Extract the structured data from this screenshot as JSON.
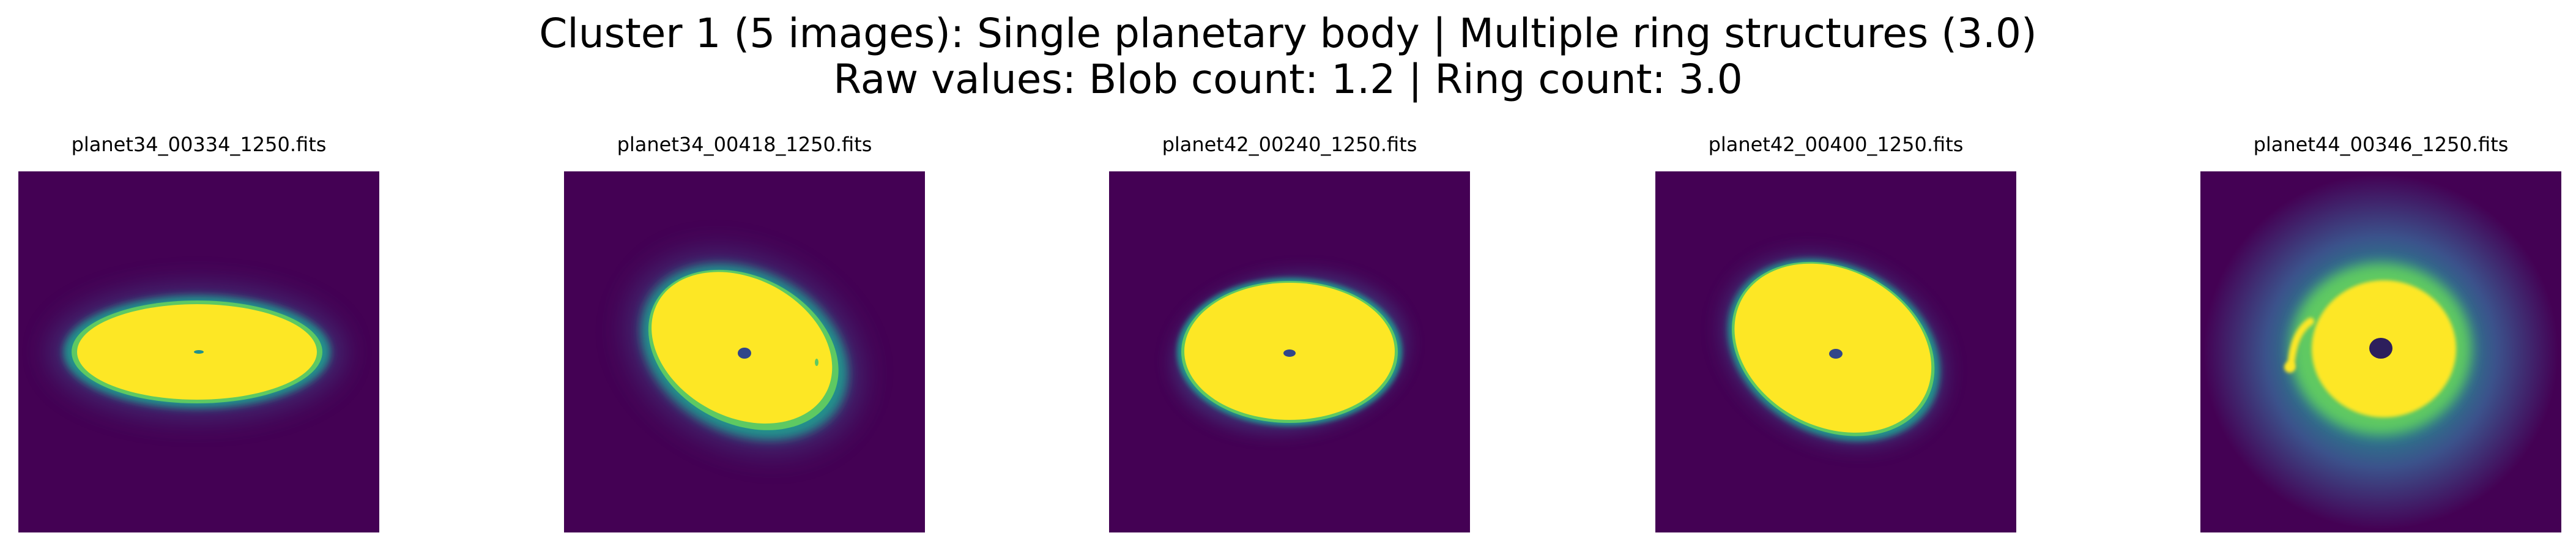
{
  "figure": {
    "title_line1": "Cluster 1 (5 images): Single planetary body | Multiple ring structures (3.0)",
    "title_line2": "Raw values: Blob count: 1.2 | Ring count: 3.0"
  },
  "colors": {
    "background": "#440154",
    "halo": "#21918c",
    "rim": "#5ec962",
    "disk": "#fde725",
    "hole": "#31468a"
  },
  "panels": [
    {
      "filename": "planet34_00334_1250.fits"
    },
    {
      "filename": "planet34_00418_1250.fits"
    },
    {
      "filename": "planet42_00240_1250.fits"
    },
    {
      "filename": "planet42_00400_1250.fits"
    },
    {
      "filename": "planet44_00346_1250.fits"
    }
  ]
}
